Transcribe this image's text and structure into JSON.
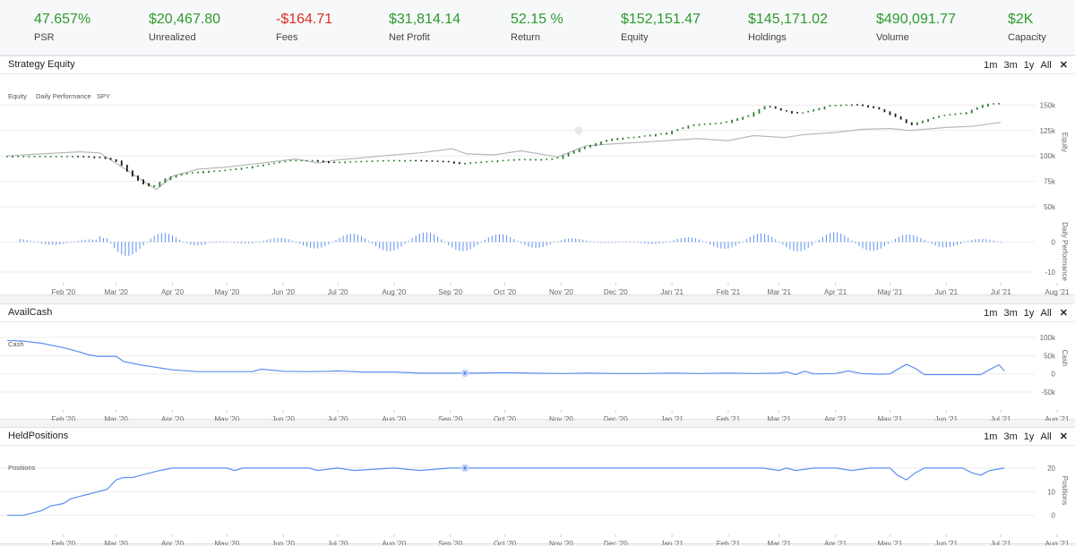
{
  "stats": [
    {
      "value": "47.657%",
      "label": "PSR",
      "negative": false
    },
    {
      "value": "$20,467.80",
      "label": "Unrealized",
      "negative": false
    },
    {
      "value": "-$164.71",
      "label": "Fees",
      "negative": true
    },
    {
      "value": "$31,814.14",
      "label": "Net Profit",
      "negative": false
    },
    {
      "value": "52.15 %",
      "label": "Return",
      "negative": false
    },
    {
      "value": "$152,151.47",
      "label": "Equity",
      "negative": false
    },
    {
      "value": "$145,171.02",
      "label": "Holdings",
      "negative": false
    },
    {
      "value": "$490,091.77",
      "label": "Volume",
      "negative": false
    },
    {
      "value": "$2K",
      "label": "Capacity",
      "negative": false
    }
  ],
  "range_buttons": [
    "1m",
    "3m",
    "1y",
    "All"
  ],
  "close_icon": "close-icon",
  "colors": {
    "positive": "#2e9a2e",
    "negative": "#d93025",
    "series_blue": "#5b8ff0",
    "spy_gray": "#b8b8b8"
  },
  "x_ticks": [
    "Feb '20",
    "Mar '20",
    "Apr '20",
    "May '20",
    "Jun '20",
    "Jul '20",
    "Aug '20",
    "Sep '20",
    "Oct '20",
    "Nov '20",
    "Dec '20",
    "Jan '21",
    "Feb '21",
    "Mar '21",
    "Apr '21",
    "May '21",
    "Jun '21",
    "Jul '21",
    "Aug '21"
  ],
  "chart_data": [
    {
      "panel": "Strategy Equity",
      "type": "line",
      "legend": [
        "Equity",
        "Daily Performance",
        "SPY"
      ],
      "legend_placement": "top-left",
      "x_range": [
        "2020-01-01",
        "2021-08-01"
      ],
      "equity": {
        "ylabel": "Equity",
        "yticks": [
          "50k",
          "75k",
          "100k",
          "125k",
          "150k"
        ],
        "ylim": [
          50000,
          160000
        ],
        "series": [
          {
            "name": "Equity",
            "kind": "candlestick-approx",
            "x": [
              "2020-01-01",
              "2020-01-20",
              "2020-02-10",
              "2020-02-25",
              "2020-03-05",
              "2020-03-12",
              "2020-03-20",
              "2020-03-24",
              "2020-04-01",
              "2020-04-10",
              "2020-04-20",
              "2020-05-01",
              "2020-05-15",
              "2020-06-01",
              "2020-06-08",
              "2020-06-20",
              "2020-07-01",
              "2020-07-15",
              "2020-08-01",
              "2020-08-15",
              "2020-09-01",
              "2020-09-10",
              "2020-09-25",
              "2020-10-10",
              "2020-10-25",
              "2020-11-01",
              "2020-11-15",
              "2020-12-01",
              "2020-12-15",
              "2021-01-01",
              "2021-01-15",
              "2021-02-01",
              "2021-02-15",
              "2021-02-25",
              "2021-03-05",
              "2021-03-15",
              "2021-04-01",
              "2021-04-15",
              "2021-04-25",
              "2021-05-05",
              "2021-05-15",
              "2021-06-01",
              "2021-06-15",
              "2021-06-25",
              "2021-07-01"
            ],
            "values": [
              100000,
              100000,
              100000,
              99000,
              95000,
              82000,
              72000,
              70000,
              79000,
              83000,
              85000,
              86000,
              89000,
              94000,
              96000,
              96000,
              94000,
              95000,
              96000,
              96000,
              95000,
              93000,
              95000,
              97000,
              97000,
              98000,
              108000,
              117000,
              119000,
              123000,
              131000,
              133000,
              140000,
              150000,
              145000,
              142000,
              150000,
              151000,
              148000,
              141000,
              131000,
              140000,
              143000,
              151000,
              152000
            ]
          },
          {
            "name": "SPY",
            "x": [
              "2020-01-01",
              "2020-01-20",
              "2020-02-10",
              "2020-02-21",
              "2020-03-05",
              "2020-03-12",
              "2020-03-23",
              "2020-04-01",
              "2020-04-15",
              "2020-05-01",
              "2020-05-15",
              "2020-06-08",
              "2020-06-20",
              "2020-07-01",
              "2020-07-20",
              "2020-08-01",
              "2020-08-15",
              "2020-09-02",
              "2020-09-10",
              "2020-09-25",
              "2020-10-10",
              "2020-10-30",
              "2020-11-15",
              "2020-12-01",
              "2020-12-20",
              "2021-01-15",
              "2021-02-01",
              "2021-02-15",
              "2021-03-04",
              "2021-03-15",
              "2021-04-01",
              "2021-04-15",
              "2021-05-01",
              "2021-05-12",
              "2021-06-01",
              "2021-06-15",
              "2021-07-01"
            ],
            "values": [
              100000,
              102000,
              104000,
              103000,
              88000,
              80000,
              67000,
              80000,
              87000,
              89000,
              92000,
              97000,
              93000,
              96000,
              99000,
              101000,
              103000,
              107000,
              102000,
              101000,
              105000,
              99000,
              110000,
              112000,
              114000,
              117000,
              115000,
              120000,
              118000,
              121000,
              123000,
              126000,
              127000,
              125000,
              128000,
              129000,
              133000
            ]
          }
        ]
      },
      "daily_performance": {
        "ylabel": "Daily Performance",
        "yticks": [
          "-10",
          "0"
        ],
        "ylim": [
          -10,
          9
        ],
        "kind": "bar"
      }
    },
    {
      "panel": "AvailCash",
      "type": "line",
      "legend": [
        "Cash"
      ],
      "ylabel": "Cash",
      "yticks": [
        "-50k",
        "0",
        "50k",
        "100k"
      ],
      "ylim": [
        -50000,
        100000
      ],
      "series": [
        {
          "name": "Cash",
          "x": [
            "2020-01-01",
            "2020-01-10",
            "2020-01-20",
            "2020-02-01",
            "2020-02-10",
            "2020-02-15",
            "2020-02-20",
            "2020-03-01",
            "2020-03-05",
            "2020-03-15",
            "2020-04-01",
            "2020-04-15",
            "2020-05-15",
            "2020-05-20",
            "2020-06-01",
            "2020-06-15",
            "2020-06-25",
            "2020-07-01",
            "2020-07-15",
            "2020-08-01",
            "2020-08-15",
            "2020-09-15",
            "2020-10-01",
            "2020-10-15",
            "2020-11-01",
            "2020-11-15",
            "2020-12-01",
            "2020-12-15",
            "2021-01-01",
            "2021-01-15",
            "2021-02-01",
            "2021-02-15",
            "2021-03-01",
            "2021-03-05",
            "2021-03-10",
            "2021-03-15",
            "2021-03-20",
            "2021-04-01",
            "2021-04-08",
            "2021-04-15",
            "2021-04-25",
            "2021-05-01",
            "2021-05-05",
            "2021-05-10",
            "2021-05-15",
            "2021-05-20",
            "2021-06-01",
            "2021-06-15",
            "2021-06-20",
            "2021-06-25",
            "2021-06-30",
            "2021-07-03"
          ],
          "values": [
            92000,
            90000,
            84000,
            72000,
            60000,
            52000,
            48000,
            48000,
            34000,
            24000,
            11000,
            6000,
            6000,
            13000,
            7000,
            6000,
            7000,
            8000,
            5000,
            5000,
            2000,
            2000,
            3000,
            2000,
            1000,
            2000,
            1000,
            1000,
            2000,
            1000,
            2000,
            1000,
            2000,
            5000,
            -2000,
            7000,
            0,
            1000,
            8000,
            1000,
            -1000,
            0,
            12000,
            26000,
            15000,
            -2000,
            -2000,
            -2000,
            -2000,
            12000,
            25000,
            8000
          ]
        }
      ]
    },
    {
      "panel": "HeldPositions",
      "type": "line",
      "legend": [
        "Positions"
      ],
      "ylabel": "Positions",
      "yticks": [
        "0",
        "10",
        "20"
      ],
      "ylim": [
        -2,
        23
      ],
      "series": [
        {
          "name": "Positions",
          "x": [
            "2020-01-01",
            "2020-01-10",
            "2020-01-15",
            "2020-01-20",
            "2020-01-25",
            "2020-02-01",
            "2020-02-05",
            "2020-02-10",
            "2020-02-15",
            "2020-02-20",
            "2020-02-25",
            "2020-03-01",
            "2020-03-05",
            "2020-03-10",
            "2020-03-15",
            "2020-03-20",
            "2020-03-25",
            "2020-04-01",
            "2020-04-15",
            "2020-05-01",
            "2020-05-05",
            "2020-05-10",
            "2020-06-01",
            "2020-06-15",
            "2020-06-20",
            "2020-07-01",
            "2020-07-10",
            "2020-08-01",
            "2020-08-15",
            "2020-09-01",
            "2020-09-15",
            "2020-10-01",
            "2020-11-01",
            "2020-11-15",
            "2020-12-01",
            "2021-01-01",
            "2021-02-01",
            "2021-02-20",
            "2021-03-01",
            "2021-03-05",
            "2021-03-10",
            "2021-03-20",
            "2021-04-01",
            "2021-04-10",
            "2021-04-20",
            "2021-05-01",
            "2021-05-05",
            "2021-05-10",
            "2021-05-15",
            "2021-05-20",
            "2021-06-01",
            "2021-06-10",
            "2021-06-15",
            "2021-06-20",
            "2021-06-25",
            "2021-07-03"
          ],
          "values": [
            0,
            0,
            1,
            2,
            4,
            5,
            7,
            8,
            9,
            10,
            11,
            15,
            16,
            16,
            17,
            18,
            19,
            20,
            20,
            20,
            19,
            20,
            20,
            20,
            19,
            20,
            19,
            20,
            19,
            20,
            20,
            20,
            20,
            20,
            20,
            20,
            20,
            20,
            19,
            20,
            19,
            20,
            20,
            19,
            20,
            20,
            17,
            15,
            18,
            20,
            20,
            20,
            18,
            17,
            19,
            20
          ]
        }
      ]
    }
  ]
}
